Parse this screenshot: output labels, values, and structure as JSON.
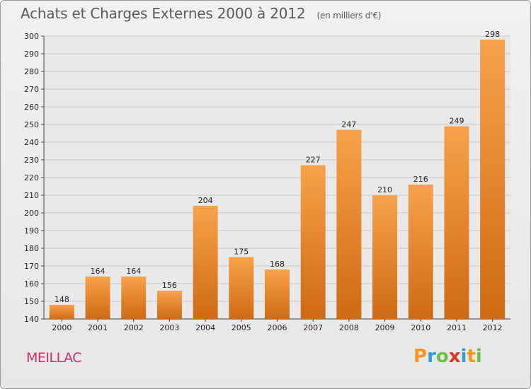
{
  "header": {
    "title": "Achats et Charges Externes 2000 à 2012",
    "unit": "(en milliers d'€)"
  },
  "footer": {
    "commune": "MEILLAC",
    "logo": [
      "P",
      "r",
      "o",
      "x",
      "i",
      "t",
      "i"
    ],
    "logo_colors": [
      "#f7941d",
      "#2e9fd8",
      "#6cbf45",
      "#e5332a",
      "#2e9fd8",
      "#f7941d",
      "#6cbf45"
    ]
  },
  "colors": {
    "bar_top": "#f7a24a",
    "bar_bottom": "#cf6a14",
    "grid": "#c8c8c8",
    "plot_bg": "#e9e9e9"
  },
  "chart_data": {
    "type": "bar",
    "title": "Achats et Charges Externes 2000 à 2012",
    "subtitle": "(en milliers d'€)",
    "categories": [
      "2000",
      "2001",
      "2002",
      "2003",
      "2004",
      "2005",
      "2006",
      "2007",
      "2008",
      "2009",
      "2010",
      "2011",
      "2012"
    ],
    "values": [
      148,
      164,
      164,
      156,
      204,
      175,
      168,
      227,
      247,
      210,
      216,
      249,
      298
    ],
    "ylim": [
      140,
      300
    ],
    "ytick_step": 10,
    "grid": true,
    "xlabel": "",
    "ylabel": ""
  }
}
